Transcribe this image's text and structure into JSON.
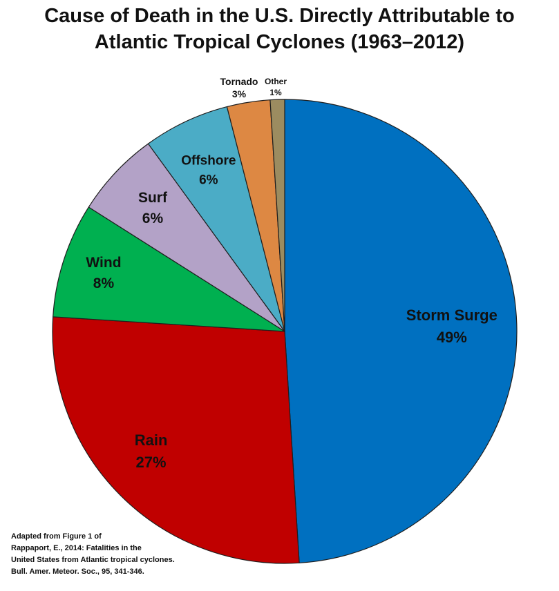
{
  "chart_data": {
    "type": "pie",
    "title": "Cause of Death in the U.S. Directly Attributable to Atlantic Tropical Cyclones (1963–2012)",
    "title_lines": [
      "Cause of Death in the U.S. Directly Attributable to",
      "Atlantic Tropical Cyclones (1963–2012)"
    ],
    "start_angle_deg": 0,
    "direction": "clockwise",
    "legend": "none",
    "slices": [
      {
        "label": "Storm Surge",
        "percent_label": "49%",
        "value": 49,
        "color": "#0070c0"
      },
      {
        "label": "Rain",
        "percent_label": "27%",
        "value": 27,
        "color": "#c00000"
      },
      {
        "label": "Wind",
        "percent_label": "8%",
        "value": 8,
        "color": "#00b050"
      },
      {
        "label": "Surf",
        "percent_label": "6%",
        "value": 6,
        "color": "#b3a2c7"
      },
      {
        "label": "Offshore",
        "percent_label": "6%",
        "value": 6,
        "color": "#4bacc6"
      },
      {
        "label": "Tornado",
        "percent_label": "3%",
        "value": 3,
        "color": "#dd8843"
      },
      {
        "label": "Other",
        "percent_label": "1%",
        "value": 1,
        "color": "#9c8c60"
      }
    ]
  },
  "source_note": {
    "lines": [
      "Adapted from Figure 1 of",
      "Rappaport, E., 2014:  Fatalities in the",
      "United States from Atlantic tropical cyclones.",
      "Bull. Amer. Meteor. Soc., 95, 341-346."
    ]
  }
}
